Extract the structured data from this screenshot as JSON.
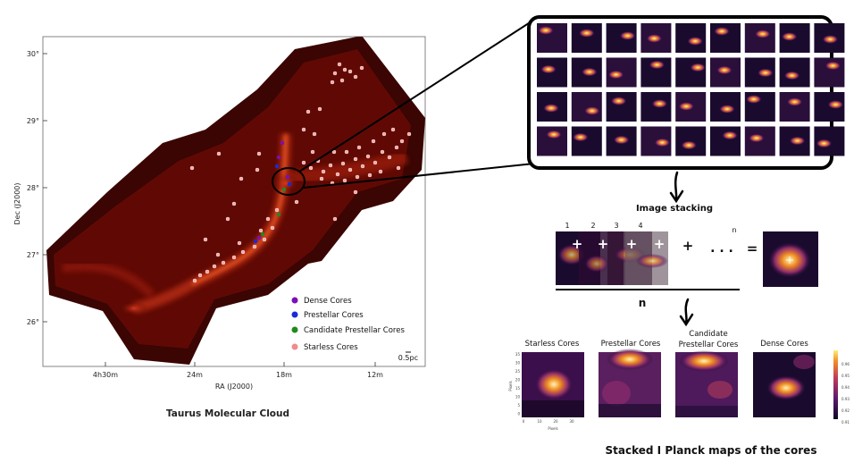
{
  "sky_map": {
    "dec_axis_label": "Dec (J2000)",
    "ra_axis_label": "RA (J2000)",
    "dec_ticks": [
      "30°",
      "29°",
      "28°",
      "27°",
      "26°"
    ],
    "ra_ticks": [
      "4h30m",
      "24m",
      "18m",
      "12m"
    ],
    "caption": "Taurus Molecular Cloud",
    "scale_bar": "0.5pc",
    "legend": [
      {
        "label": "Dense Cores",
        "color": "#7a0fb5"
      },
      {
        "label": "Prestellar Cores",
        "color": "#1a2bd8"
      },
      {
        "label": "Candidate Prestellar Cores",
        "color": "#1f8a1f"
      },
      {
        "label": "Starless Cores",
        "color": "#f08c8c"
      }
    ]
  },
  "stacking": {
    "title": "Image stacking",
    "indices": [
      "1",
      "2",
      "3",
      "4",
      "n"
    ],
    "plus": "+",
    "dots": ". . .",
    "equals": "=",
    "n_label": "n"
  },
  "stacked_maps": {
    "title": "Stacked I Planck maps of the cores",
    "panels": [
      {
        "label": "Starless Cores"
      },
      {
        "label": "Prestellar Cores"
      },
      {
        "label": "Candidate Prestellar Cores"
      },
      {
        "label": "Dense Cores"
      }
    ],
    "x_axis_label": "Pixels",
    "y_axis_label": "Pixels",
    "x_ticks": [
      "0",
      "10",
      "20",
      "30"
    ],
    "y_ticks": [
      "35",
      "30",
      "25",
      "20",
      "15",
      "10",
      "5",
      "0"
    ],
    "colorbar_ticks": [
      "0.96",
      "0.95",
      "0.94",
      "0.93",
      "0.92",
      "0.91"
    ]
  },
  "colors": {
    "map_red": "#8a0f08",
    "map_dark": "#2a0200",
    "inferno_dark": "#1a0b2e",
    "inferno_purple": "#7b1f6f",
    "inferno_orange": "#e07a1e",
    "inferno_yellow": "#fae57a"
  }
}
